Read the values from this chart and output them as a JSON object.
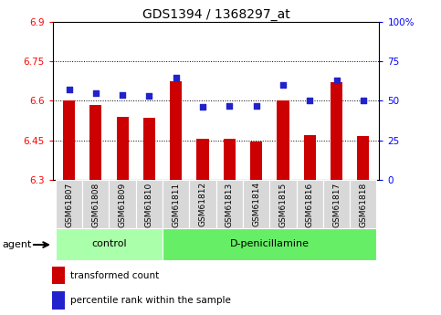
{
  "title": "GDS1394 / 1368297_at",
  "samples": [
    "GSM61807",
    "GSM61808",
    "GSM61809",
    "GSM61810",
    "GSM61811",
    "GSM61812",
    "GSM61813",
    "GSM61814",
    "GSM61815",
    "GSM61816",
    "GSM61817",
    "GSM61818"
  ],
  "bar_values": [
    6.6,
    6.585,
    6.54,
    6.535,
    6.675,
    6.455,
    6.455,
    6.445,
    6.6,
    6.47,
    6.67,
    6.465
  ],
  "percentile_values": [
    57,
    55,
    54,
    53,
    65,
    46,
    47,
    47,
    60,
    50,
    63,
    50
  ],
  "bar_bottom": 6.3,
  "ylim_left": [
    6.3,
    6.9
  ],
  "ylim_right": [
    0,
    100
  ],
  "yticks_left": [
    6.3,
    6.45,
    6.6,
    6.75,
    6.9
  ],
  "ytick_labels_left": [
    "6.3",
    "6.45",
    "6.6",
    "6.75",
    "6.9"
  ],
  "yticks_right": [
    0,
    25,
    50,
    75,
    100
  ],
  "ytick_labels_right": [
    "0",
    "25",
    "50",
    "75",
    "100%"
  ],
  "hlines": [
    6.45,
    6.6,
    6.75
  ],
  "bar_color": "#cc0000",
  "dot_color": "#2222cc",
  "agent_groups": [
    {
      "label": "control",
      "start": 0,
      "end": 4,
      "color": "#aaffaa"
    },
    {
      "label": "D-penicillamine",
      "start": 4,
      "end": 12,
      "color": "#66ee66"
    }
  ],
  "agent_label": "agent",
  "legend_bar_label": "transformed count",
  "legend_dot_label": "percentile rank within the sample",
  "bar_width": 0.45,
  "title_fontsize": 10,
  "tick_fontsize": 7.5,
  "label_fontsize": 8
}
